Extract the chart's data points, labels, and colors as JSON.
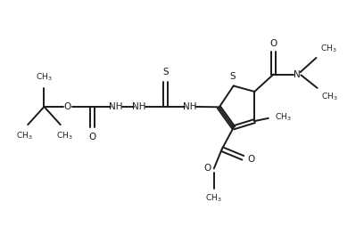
{
  "background_color": "#ffffff",
  "figsize": [
    4.08,
    2.54
  ],
  "dpi": 100,
  "line_color": "#1a1a1a",
  "line_width": 1.4,
  "font_size": 7.5,
  "font_size_small": 6.5,
  "xlim": [
    0,
    10
  ],
  "ylim": [
    0,
    6.25
  ]
}
